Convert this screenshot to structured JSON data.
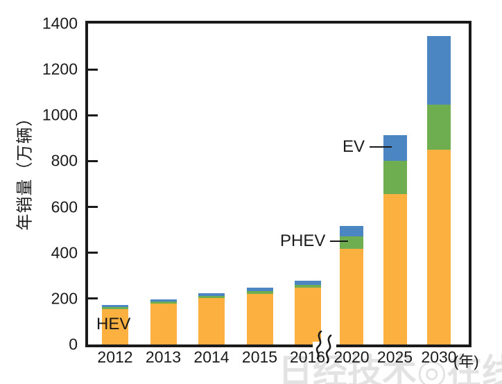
{
  "watermark": {
    "text": "日经技术◎在线!"
  },
  "annotations": {
    "hev_label": "HEV",
    "phev_label": "PHEV",
    "ev_label": "EV"
  },
  "chart_data": {
    "type": "bar",
    "stacked": true,
    "title": "",
    "ylabel": "年销量（万辆）",
    "xlabel": "",
    "x_unit_suffix": "(年)",
    "ylim": [
      0,
      1400
    ],
    "yticks": [
      "0",
      "200",
      "400",
      "600",
      "800",
      "1000",
      "1200",
      "1400"
    ],
    "ytick_values": [
      0,
      200,
      400,
      600,
      800,
      1000,
      1200,
      1400
    ],
    "grid": false,
    "legend_position": "inline-annotations",
    "axis_break_between": [
      "2016",
      "2020"
    ],
    "categories": [
      "2012",
      "2013",
      "2014",
      "2015",
      "2016",
      "2020",
      "2025",
      "2030"
    ],
    "series": [
      {
        "name": "HEV",
        "color": "#FBB040",
        "values": [
          155,
          178,
          203,
          220,
          248,
          417,
          655,
          850
        ]
      },
      {
        "name": "PHEV",
        "color": "#6EAD50",
        "values": [
          8,
          10,
          10,
          14,
          11,
          55,
          145,
          195
        ]
      },
      {
        "name": "EV",
        "color": "#4C86C2",
        "values": [
          9,
          8,
          10,
          14,
          19,
          46,
          112,
          300
        ]
      }
    ],
    "totals": [
      172,
      196,
      223,
      248,
      278,
      518,
      912,
      1345
    ]
  }
}
